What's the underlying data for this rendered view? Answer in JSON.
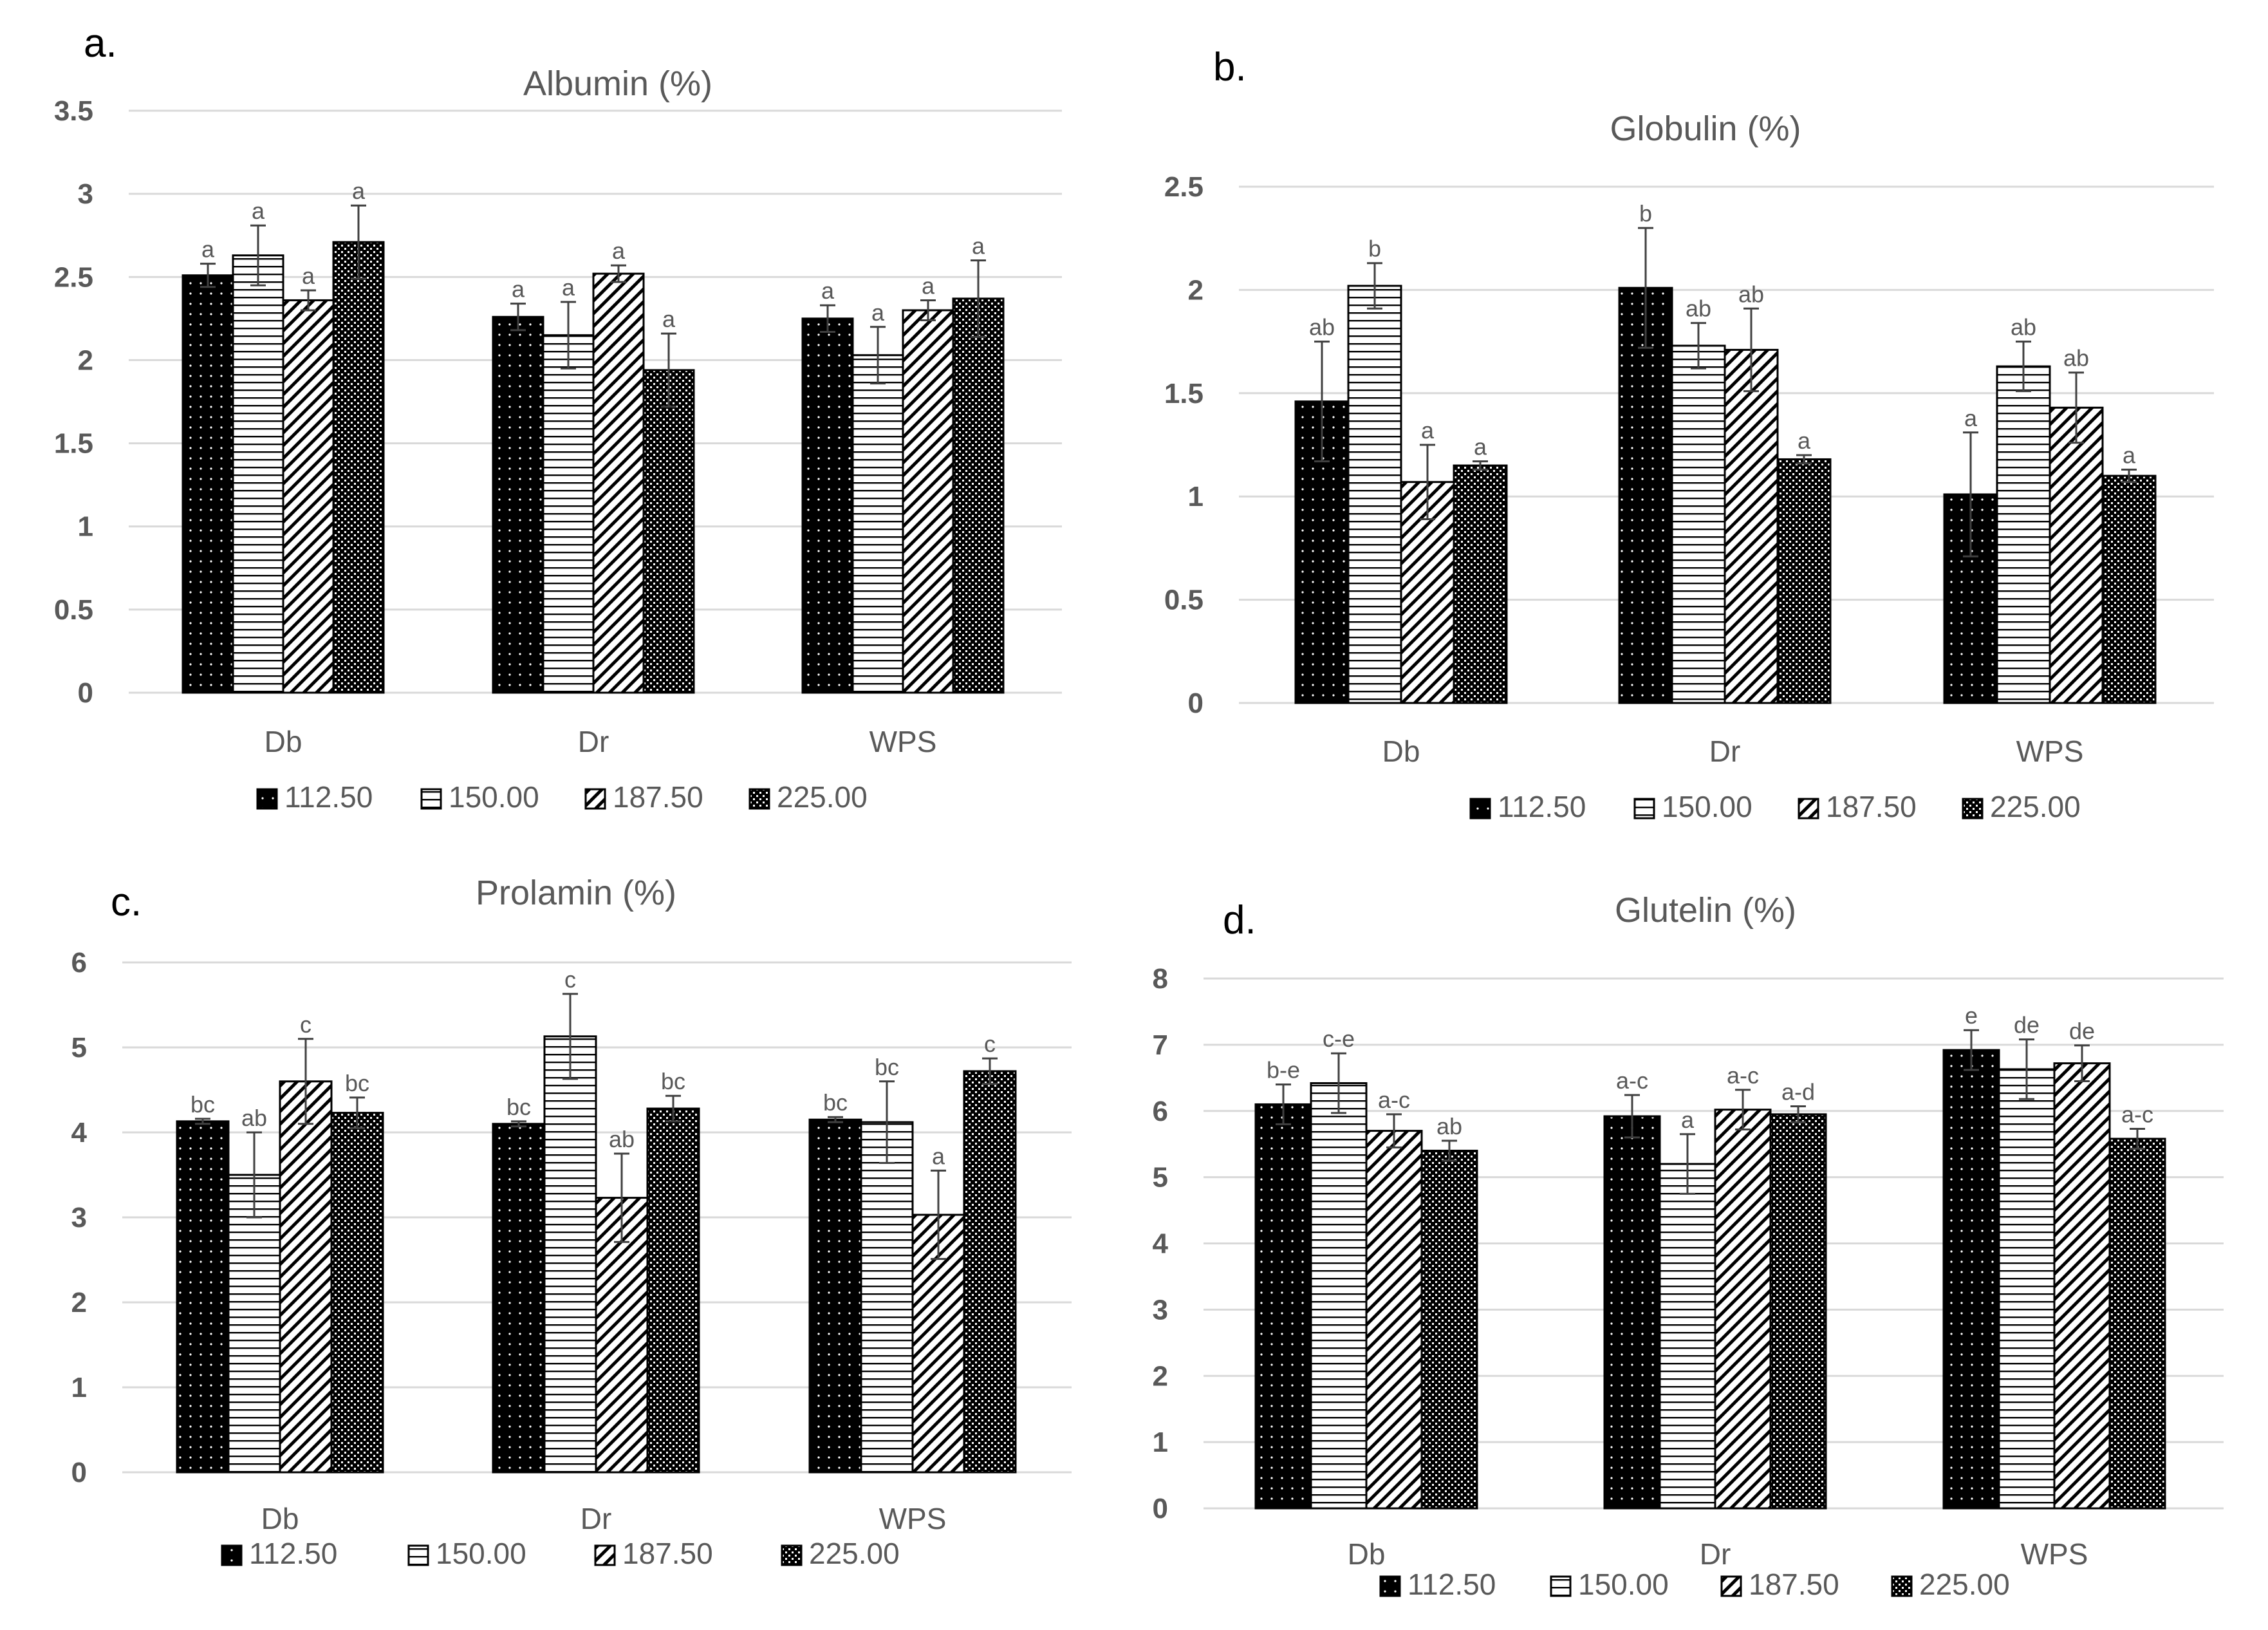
{
  "legend_labels": [
    "112.50",
    "150.00",
    "187.50",
    "225.00"
  ],
  "colors": {
    "grid": "#d9d9d9",
    "text": "#595959",
    "bar": "#000000"
  },
  "chart_data": [
    {
      "panel": "a.",
      "type": "bar",
      "title": "Albumin (%)",
      "categories": [
        "Db",
        "Dr",
        "WPS"
      ],
      "ylim": [
        0,
        3.5
      ],
      "yticks": [
        0,
        0.5,
        1,
        1.5,
        2,
        2.5,
        3,
        3.5
      ],
      "ytick_labels": [
        "0",
        "0.5",
        "1",
        "1.5",
        "2",
        "2.5",
        "3",
        "3.5"
      ],
      "series": [
        {
          "name": "112.50",
          "values": [
            2.51,
            2.26,
            2.25
          ],
          "errors": [
            0.07,
            0.08,
            0.08
          ],
          "letters": [
            "a",
            "a",
            "a"
          ]
        },
        {
          "name": "150.00",
          "values": [
            2.63,
            2.15,
            2.03
          ],
          "errors": [
            0.18,
            0.2,
            0.17
          ],
          "letters": [
            "a",
            "a",
            "a"
          ]
        },
        {
          "name": "187.50",
          "values": [
            2.36,
            2.52,
            2.3
          ],
          "errors": [
            0.06,
            0.05,
            0.06
          ],
          "letters": [
            "a",
            "a",
            "a"
          ]
        },
        {
          "name": "225.00",
          "values": [
            2.71,
            1.94,
            2.37
          ],
          "errors": [
            0.22,
            0.22,
            0.23
          ],
          "letters": [
            "a",
            "a",
            "a"
          ]
        }
      ]
    },
    {
      "panel": "b.",
      "type": "bar",
      "title": "Globulin (%)",
      "categories": [
        "Db",
        "Dr",
        "WPS"
      ],
      "ylim": [
        0,
        2.5
      ],
      "yticks": [
        0,
        0.5,
        1,
        1.5,
        2,
        2.5
      ],
      "ytick_labels": [
        "0",
        "0.5",
        "1",
        "1.5",
        "2",
        "2.5"
      ],
      "series": [
        {
          "name": "112.50",
          "values": [
            1.46,
            2.01,
            1.01
          ],
          "errors": [
            0.29,
            0.29,
            0.3
          ],
          "letters": [
            "ab",
            "b",
            "a"
          ]
        },
        {
          "name": "150.00",
          "values": [
            2.02,
            1.73,
            1.63
          ],
          "errors": [
            0.11,
            0.11,
            0.12
          ],
          "letters": [
            "b",
            "ab",
            "ab"
          ]
        },
        {
          "name": "187.50",
          "values": [
            1.07,
            1.71,
            1.43
          ],
          "errors": [
            0.18,
            0.2,
            0.17
          ],
          "letters": [
            "a",
            "ab",
            "ab"
          ]
        },
        {
          "name": "225.00",
          "values": [
            1.15,
            1.18,
            1.1
          ],
          "errors": [
            0.02,
            0.02,
            0.03
          ],
          "letters": [
            "a",
            "a",
            "a"
          ]
        }
      ]
    },
    {
      "panel": "c.",
      "type": "bar",
      "title": "Prolamin (%)",
      "categories": [
        "Db",
        "Dr",
        "WPS"
      ],
      "ylim": [
        0,
        6
      ],
      "yticks": [
        0,
        1,
        2,
        3,
        4,
        5,
        6
      ],
      "ytick_labels": [
        "0",
        "1",
        "2",
        "3",
        "4",
        "5",
        "6"
      ],
      "series": [
        {
          "name": "112.50",
          "values": [
            4.13,
            4.1,
            4.15
          ],
          "errors": [
            0.03,
            0.03,
            0.03
          ],
          "letters": [
            "bc",
            "bc",
            "bc"
          ]
        },
        {
          "name": "150.00",
          "values": [
            3.5,
            5.13,
            4.12
          ],
          "errors": [
            0.5,
            0.5,
            0.48
          ],
          "letters": [
            "ab",
            "c",
            "bc"
          ]
        },
        {
          "name": "187.50",
          "values": [
            4.6,
            3.23,
            3.03
          ],
          "errors": [
            0.5,
            0.52,
            0.52
          ],
          "letters": [
            "c",
            "ab",
            "a"
          ]
        },
        {
          "name": "225.00",
          "values": [
            4.23,
            4.28,
            4.72
          ],
          "errors": [
            0.18,
            0.15,
            0.15
          ],
          "letters": [
            "bc",
            "bc",
            "c"
          ]
        }
      ]
    },
    {
      "panel": "d.",
      "type": "bar",
      "title": "Glutelin (%)",
      "categories": [
        "Db",
        "Dr",
        "WPS"
      ],
      "ylim": [
        0,
        8
      ],
      "yticks": [
        0,
        1,
        2,
        3,
        4,
        5,
        6,
        7,
        8
      ],
      "ytick_labels": [
        "0",
        "1",
        "2",
        "3",
        "4",
        "5",
        "6",
        "7",
        "8"
      ],
      "series": [
        {
          "name": "112.50",
          "values": [
            6.1,
            5.92,
            6.92
          ],
          "errors": [
            0.3,
            0.32,
            0.3
          ],
          "letters": [
            "b-e",
            "a-c",
            "e"
          ]
        },
        {
          "name": "150.00",
          "values": [
            6.42,
            5.2,
            6.63
          ],
          "errors": [
            0.45,
            0.45,
            0.45
          ],
          "letters": [
            "c-e",
            "a",
            "de"
          ]
        },
        {
          "name": "187.50",
          "values": [
            5.7,
            6.02,
            6.72
          ],
          "errors": [
            0.25,
            0.3,
            0.27
          ],
          "letters": [
            "a-c",
            "a-c",
            "de"
          ]
        },
        {
          "name": "225.00",
          "values": [
            5.4,
            5.95,
            5.58
          ],
          "errors": [
            0.15,
            0.12,
            0.15
          ],
          "letters": [
            "ab",
            "a-d",
            "a-c"
          ]
        }
      ]
    }
  ]
}
